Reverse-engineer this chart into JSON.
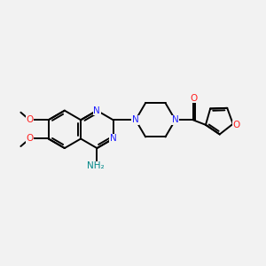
{
  "background_color": "#f2f2f2",
  "bond_color": "#000000",
  "N_color": "#2020ff",
  "O_color": "#ff2020",
  "NH2_color": "#008888",
  "figsize": [
    3.0,
    3.0
  ],
  "dpi": 100,
  "xlim": [
    0,
    10
  ],
  "ylim": [
    1,
    9
  ]
}
